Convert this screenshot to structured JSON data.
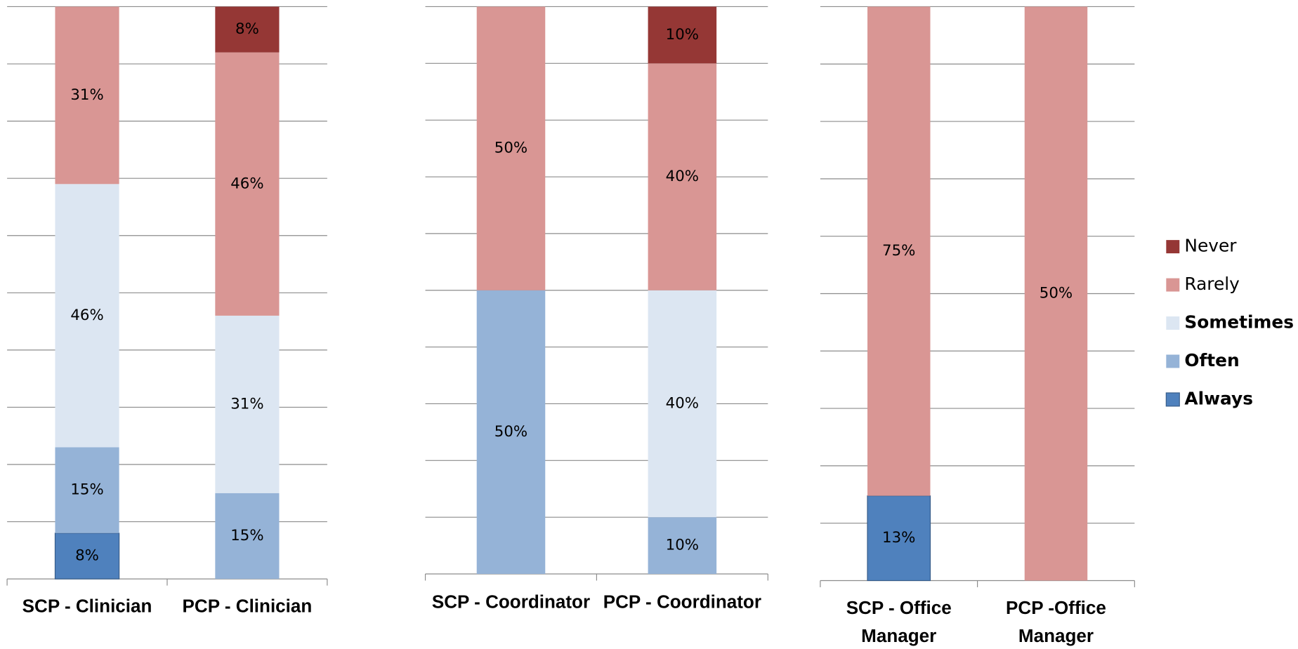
{
  "chart_data": [
    {
      "type": "bar",
      "stacked": "percent",
      "grid": true,
      "categories": [
        "SCP - Clinician",
        "PCP - Clinician"
      ],
      "ylim": [
        0,
        100
      ],
      "yticks": [
        0,
        10,
        20,
        30,
        40,
        50,
        60,
        70,
        80,
        90,
        100
      ],
      "series": [
        {
          "name": "Always",
          "color": "#4f81bd",
          "values": [
            8,
            null
          ]
        },
        {
          "name": "Often",
          "color": "#95b3d7",
          "values": [
            15,
            15
          ]
        },
        {
          "name": "Sometimes",
          "color": "#dce6f2",
          "values": [
            46,
            31
          ]
        },
        {
          "name": "Rarely",
          "color": "#d99694",
          "values": [
            31,
            46
          ]
        },
        {
          "name": "Never",
          "color": "#953735",
          "values": [
            null,
            8
          ]
        }
      ]
    },
    {
      "type": "bar",
      "stacked": "percent",
      "grid": true,
      "categories": [
        "SCP - Coordinator",
        "PCP - Coordinator"
      ],
      "ylim": [
        0,
        100
      ],
      "yticks": [
        0,
        10,
        20,
        30,
        40,
        50,
        60,
        70,
        80,
        90,
        100
      ],
      "series": [
        {
          "name": "Always",
          "color": "#4f81bd",
          "values": [
            null,
            null
          ]
        },
        {
          "name": "Often",
          "color": "#95b3d7",
          "values": [
            50,
            10
          ]
        },
        {
          "name": "Sometimes",
          "color": "#dce6f2",
          "values": [
            null,
            40
          ]
        },
        {
          "name": "Rarely",
          "color": "#d99694",
          "values": [
            50,
            40
          ]
        },
        {
          "name": "Never",
          "color": "#953735",
          "values": [
            null,
            10
          ]
        }
      ]
    },
    {
      "type": "bar",
      "stacked": "percent",
      "grid": true,
      "categories": [
        "SCP - Office Manager",
        "PCP -Office Manager"
      ],
      "ylim": [
        0,
        100
      ],
      "yticks": [
        0,
        10,
        20,
        30,
        40,
        50,
        60,
        70,
        80,
        90,
        100
      ],
      "legend": "right",
      "series": [
        {
          "name": "Always",
          "color": "#4f81bd",
          "values": [
            13,
            null
          ],
          "bold": true
        },
        {
          "name": "Often",
          "color": "#95b3d7",
          "values": [
            null,
            null
          ],
          "bold": true
        },
        {
          "name": "Sometimes",
          "color": "#dce6f2",
          "values": [
            null,
            null
          ],
          "bold": true
        },
        {
          "name": "Rarely",
          "color": "#d99694",
          "values": [
            75,
            50
          ],
          "bold": false
        },
        {
          "name": "Never",
          "color": "#953735",
          "values": [
            null,
            null
          ],
          "bold": false
        }
      ]
    }
  ]
}
